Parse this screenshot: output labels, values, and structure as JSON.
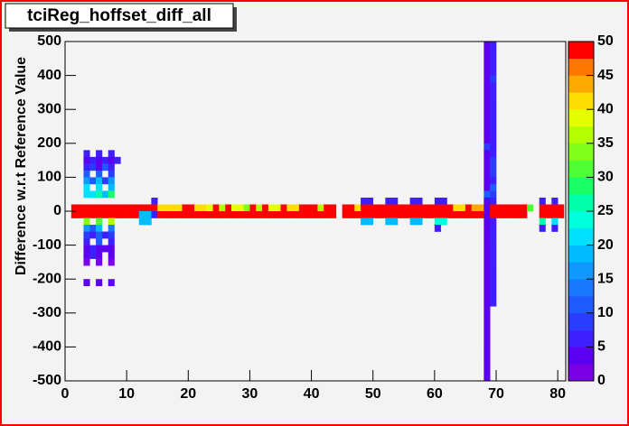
{
  "chart_data": {
    "type": "heatmap",
    "title": "tciReg_hoffset_diff_all",
    "ylabel": "Difference w.r.t Reference Value",
    "xlim": [
      0,
      81.3
    ],
    "ylim": [
      -500,
      500
    ],
    "xticks": [
      0,
      10,
      20,
      30,
      40,
      50,
      60,
      70,
      80
    ],
    "yticks": [
      -500,
      -400,
      -300,
      -200,
      -100,
      0,
      100,
      200,
      300,
      400,
      500
    ],
    "zlim": [
      0,
      50
    ],
    "zticks": [
      0,
      5,
      10,
      15,
      20,
      25,
      30,
      35,
      40,
      45,
      50
    ],
    "bin_size": [
      1,
      20
    ],
    "palette": [
      "#7a00e6",
      "#5c00f0",
      "#3d1fff",
      "#2a3dff",
      "#1f5cff",
      "#1a7aff",
      "#0f99ff",
      "#00bbff",
      "#00e0ff",
      "#00ffdd",
      "#00ffaa",
      "#1aff66",
      "#4dff33",
      "#80ff1a",
      "#b3ff00",
      "#e6ff00",
      "#ffdd00",
      "#ffaa00",
      "#ff7700",
      "#ff0000"
    ],
    "rows": [
      {
        "y": 480,
        "x": [
          68,
          69
        ],
        "values": [
          3,
          5
        ]
      },
      {
        "y": 460,
        "x": [
          68,
          69
        ],
        "values": [
          3,
          5
        ]
      },
      {
        "y": 440,
        "x": [
          68,
          69
        ],
        "values": [
          4,
          5
        ]
      },
      {
        "y": 420,
        "x": [
          68,
          69
        ],
        "values": [
          3,
          6
        ]
      },
      {
        "y": 400,
        "x": [
          68,
          69
        ],
        "values": [
          3,
          5
        ]
      },
      {
        "y": 380,
        "x": [
          68,
          69
        ],
        "values": [
          3,
          8
        ]
      },
      {
        "y": 360,
        "x": [
          68,
          69
        ],
        "values": [
          3,
          5
        ]
      },
      {
        "y": 340,
        "x": [
          68,
          69
        ],
        "values": [
          4,
          5
        ]
      },
      {
        "y": 320,
        "x": [
          68,
          69
        ],
        "values": [
          3,
          6
        ]
      },
      {
        "y": 300,
        "x": [
          68,
          69
        ],
        "values": [
          3,
          5
        ]
      },
      {
        "y": 280,
        "x": [
          68,
          69
        ],
        "values": [
          3,
          5
        ]
      },
      {
        "y": 260,
        "x": [
          68,
          69
        ],
        "values": [
          4,
          5
        ]
      },
      {
        "y": 240,
        "x": [
          68,
          69
        ],
        "values": [
          3,
          6
        ]
      },
      {
        "y": 220,
        "x": [
          68,
          69
        ],
        "values": [
          3,
          5
        ]
      },
      {
        "y": 200,
        "x": [
          68,
          69
        ],
        "values": [
          3,
          5
        ]
      },
      {
        "y": 180,
        "x": [
          68,
          69
        ],
        "values": [
          8,
          5
        ]
      },
      {
        "y": 160,
        "x": [
          3,
          5,
          7,
          68,
          69
        ],
        "values": [
          5,
          5,
          5,
          3,
          5
        ]
      },
      {
        "y": 140,
        "x": [
          3,
          4,
          5,
          6,
          7,
          8,
          68,
          69
        ],
        "values": [
          4,
          6,
          4,
          6,
          4,
          6,
          3,
          8
        ]
      },
      {
        "y": 120,
        "x": [
          3,
          4,
          5,
          6,
          7,
          68,
          69
        ],
        "values": [
          5,
          8,
          4,
          10,
          5,
          3,
          8
        ]
      },
      {
        "y": 100,
        "x": [
          3,
          5,
          7,
          68,
          69
        ],
        "values": [
          10,
          12,
          8,
          3,
          8
        ]
      },
      {
        "y": 80,
        "x": [
          3,
          4,
          5,
          6,
          7,
          68,
          69
        ],
        "values": [
          15,
          12,
          18,
          8,
          15,
          4,
          5
        ]
      },
      {
        "y": 60,
        "x": [
          3,
          5,
          7,
          68,
          69
        ],
        "values": [
          20,
          22,
          18,
          3,
          10
        ]
      },
      {
        "y": 40,
        "x": [
          3,
          4,
          5,
          6,
          7,
          68,
          69
        ],
        "values": [
          22,
          20,
          25,
          18,
          28,
          12,
          8
        ]
      },
      {
        "y": 20,
        "x": [
          14,
          48,
          49,
          52,
          53,
          56,
          57,
          60,
          61,
          68,
          69,
          77,
          79
        ],
        "values": [
          5,
          5,
          5,
          5,
          5,
          5,
          5,
          5,
          5,
          4,
          6,
          5,
          5
        ]
      },
      {
        "y": 0,
        "x": [
          1,
          2,
          3,
          4,
          5,
          6,
          7,
          8,
          9,
          10,
          11,
          12,
          13,
          14,
          15,
          16,
          17,
          18,
          19,
          20,
          21,
          22,
          23,
          24,
          25,
          26,
          27,
          28,
          29,
          30,
          31,
          32,
          33,
          34,
          35,
          36,
          37,
          38,
          39,
          40,
          41,
          42,
          43,
          45,
          46,
          47,
          48,
          49,
          50,
          51,
          52,
          53,
          54,
          55,
          56,
          57,
          58,
          59,
          60,
          61,
          62,
          63,
          64,
          65,
          66,
          67,
          68,
          69,
          70,
          71,
          72,
          73,
          74,
          75,
          77,
          78,
          79,
          80
        ],
        "values": [
          50,
          50,
          50,
          50,
          50,
          50,
          50,
          50,
          50,
          50,
          50,
          50,
          50,
          50,
          42,
          42,
          42,
          42,
          50,
          50,
          42,
          42,
          38,
          50,
          35,
          50,
          38,
          38,
          34,
          50,
          36,
          50,
          38,
          38,
          50,
          42,
          42,
          50,
          50,
          50,
          36,
          50,
          50,
          50,
          50,
          42,
          50,
          50,
          50,
          50,
          50,
          50,
          50,
          50,
          50,
          50,
          50,
          50,
          50,
          50,
          50,
          42,
          42,
          50,
          44,
          44,
          3,
          50,
          50,
          50,
          50,
          50,
          50,
          32,
          50,
          50,
          50,
          50
        ]
      },
      {
        "y": -20,
        "x": [
          1,
          2,
          3,
          4,
          5,
          6,
          7,
          8,
          9,
          10,
          11,
          12,
          13,
          14,
          15,
          16,
          17,
          18,
          19,
          20,
          21,
          22,
          23,
          24,
          25,
          26,
          27,
          28,
          29,
          30,
          31,
          32,
          33,
          34,
          35,
          36,
          37,
          38,
          39,
          40,
          41,
          42,
          43,
          45,
          46,
          47,
          48,
          49,
          50,
          51,
          52,
          53,
          54,
          55,
          56,
          57,
          58,
          59,
          60,
          61,
          62,
          63,
          64,
          65,
          66,
          67,
          68,
          69,
          70,
          71,
          72,
          73,
          74,
          77,
          78,
          79,
          80
        ],
        "values": [
          50,
          50,
          50,
          50,
          50,
          50,
          50,
          50,
          50,
          50,
          50,
          18,
          18,
          5,
          50,
          50,
          50,
          50,
          50,
          50,
          50,
          50,
          50,
          50,
          50,
          50,
          50,
          50,
          50,
          50,
          50,
          50,
          50,
          50,
          50,
          50,
          50,
          50,
          50,
          50,
          50,
          50,
          50,
          50,
          50,
          50,
          50,
          50,
          50,
          50,
          50,
          50,
          50,
          50,
          50,
          50,
          50,
          50,
          50,
          50,
          50,
          50,
          50,
          50,
          50,
          50,
          3,
          50,
          50,
          50,
          50,
          50,
          50,
          50,
          50,
          50,
          50
        ]
      },
      {
        "y": -40,
        "x": [
          3,
          5,
          7,
          12,
          13,
          48,
          49,
          52,
          53,
          56,
          57,
          60,
          61,
          68,
          69,
          77,
          79
        ],
        "values": [
          33,
          30,
          35,
          18,
          18,
          18,
          18,
          18,
          18,
          18,
          18,
          24,
          24,
          3,
          5,
          25,
          22
        ]
      },
      {
        "y": -60,
        "x": [
          3,
          4,
          5,
          7,
          60,
          68,
          69,
          77,
          79
        ],
        "values": [
          15,
          12,
          18,
          14,
          5,
          3,
          5,
          5,
          5
        ]
      },
      {
        "y": -80,
        "x": [
          3,
          4,
          5,
          6,
          7,
          68,
          69
        ],
        "values": [
          8,
          6,
          10,
          5,
          8,
          3,
          5
        ]
      },
      {
        "y": -100,
        "x": [
          3,
          5,
          7,
          68,
          69
        ],
        "values": [
          6,
          10,
          6,
          3,
          5
        ]
      },
      {
        "y": -120,
        "x": [
          3,
          4,
          5,
          6,
          7,
          68,
          69
        ],
        "values": [
          4,
          6,
          4,
          3,
          4,
          3,
          5
        ]
      },
      {
        "y": -140,
        "x": [
          3,
          4,
          5,
          7,
          68,
          69
        ],
        "values": [
          3,
          5,
          3,
          3,
          3,
          6
        ]
      },
      {
        "y": -160,
        "x": [
          3,
          5,
          7,
          68,
          69
        ],
        "values": [
          2,
          2,
          2,
          3,
          5
        ]
      },
      {
        "y": -180,
        "x": [
          68,
          69
        ],
        "values": [
          3,
          5
        ]
      },
      {
        "y": -200,
        "x": [
          68,
          69
        ],
        "values": [
          3,
          5
        ]
      },
      {
        "y": -220,
        "x": [
          3,
          5,
          7,
          68,
          69
        ],
        "values": [
          3,
          3,
          3,
          3,
          5
        ]
      },
      {
        "y": -240,
        "x": [
          68,
          69
        ],
        "values": [
          3,
          6
        ]
      },
      {
        "y": -260,
        "x": [
          68,
          69
        ],
        "values": [
          3,
          5
        ]
      },
      {
        "y": -280,
        "x": [
          68,
          69
        ],
        "values": [
          3,
          5
        ]
      },
      {
        "y": -300,
        "x": [
          68
        ],
        "values": [
          3
        ]
      },
      {
        "y": -320,
        "x": [
          68
        ],
        "values": [
          3
        ]
      },
      {
        "y": -340,
        "x": [
          68
        ],
        "values": [
          3
        ]
      },
      {
        "y": -360,
        "x": [
          68
        ],
        "values": [
          3
        ]
      },
      {
        "y": -380,
        "x": [
          68
        ],
        "values": [
          3
        ]
      },
      {
        "y": -400,
        "x": [
          68
        ],
        "values": [
          3
        ]
      },
      {
        "y": -420,
        "x": [
          68
        ],
        "values": [
          3
        ]
      },
      {
        "y": -440,
        "x": [
          68
        ],
        "values": [
          3
        ]
      },
      {
        "y": -460,
        "x": [
          68
        ],
        "values": [
          3
        ]
      },
      {
        "y": -480,
        "x": [
          68
        ],
        "values": [
          3
        ]
      },
      {
        "y": -500,
        "x": [
          68
        ],
        "values": [
          3
        ]
      }
    ]
  }
}
